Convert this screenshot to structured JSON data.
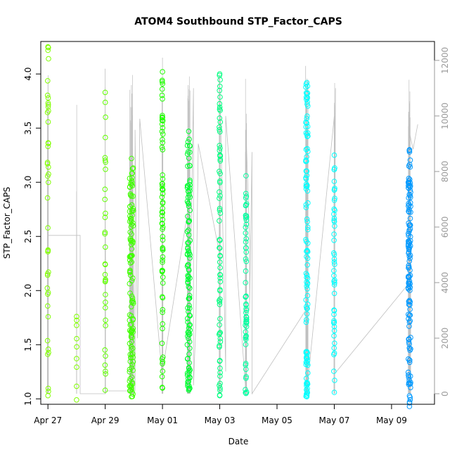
{
  "chart_data": {
    "type": "scatter",
    "title": "ATOM4 Southbound STP_Factor_CAPS",
    "xlabel": "Date",
    "ylabel": "STP_Factor_CAPS",
    "x_axis": {
      "type": "date",
      "range": [
        "2017-04-26T18:00",
        "2017-05-10T12:00"
      ],
      "ticks": [
        "Apr 27",
        "Apr 29",
        "May 01",
        "May 03",
        "May 05",
        "May 07",
        "May 09"
      ]
    },
    "y_axis": {
      "range": [
        0.95,
        4.3
      ],
      "ticks": [
        "1.0",
        "1.5",
        "2.0",
        "2.5",
        "3.0",
        "3.5",
        "4.0"
      ]
    },
    "y2_axis": {
      "range": [
        0,
        12200
      ],
      "ticks": [
        "0",
        "2000",
        "4000",
        "6000",
        "8000",
        "10000",
        "12000"
      ],
      "color": "#9a9a9a"
    },
    "grid": false,
    "legend": "none",
    "clusters": [
      {
        "day": "2017-04-27",
        "spread_h": 0.5,
        "ymin": 1.03,
        "ymax": 4.25,
        "color": "#80ff00",
        "count": 40
      },
      {
        "day": "2017-04-28",
        "spread_h": 0.1,
        "ymin": 0.99,
        "ymax": 1.76,
        "color": "#80ff00",
        "count": 7
      },
      {
        "day": "2017-04-29",
        "spread_h": 0.3,
        "ymin": 1.08,
        "ymax": 3.83,
        "color": "#60ff00",
        "count": 30
      },
      {
        "day": "2017-04-29T22:00",
        "spread_h": 1.6,
        "ymin": 1.02,
        "ymax": 3.22,
        "color": "#40ff00",
        "count": 120
      },
      {
        "day": "2017-05-01",
        "spread_h": 0.4,
        "ymin": 1.1,
        "ymax": 4.02,
        "color": "#20ff00",
        "count": 70
      },
      {
        "day": "2017-05-01T22:00",
        "spread_h": 1.2,
        "ymin": 1.08,
        "ymax": 3.47,
        "color": "#00ff30",
        "count": 110
      },
      {
        "day": "2017-05-03",
        "spread_h": 0.5,
        "ymin": 1.03,
        "ymax": 4.0,
        "color": "#00ff80",
        "count": 70
      },
      {
        "day": "2017-05-03T22:00",
        "spread_h": 0.5,
        "ymin": 1.05,
        "ymax": 3.06,
        "color": "#00ffa0",
        "count": 55
      },
      {
        "day": "2017-05-06T01:00",
        "spread_h": 0.9,
        "ymin": 1.02,
        "ymax": 3.92,
        "color": "#00ffff",
        "count": 110
      },
      {
        "day": "2017-05-07",
        "spread_h": 0.4,
        "ymin": 1.06,
        "ymax": 3.25,
        "color": "#00ffff",
        "count": 45
      },
      {
        "day": "2017-05-09T15:00",
        "spread_h": 1.0,
        "ymin": 0.93,
        "ymax": 3.3,
        "color": "#0099ff",
        "count": 130
      }
    ],
    "secondary_series": {
      "name": "",
      "color": "#c0c0c0",
      "points": [
        [
          "2017-04-27",
          0
        ],
        [
          "2017-04-27",
          1200
        ],
        [
          "2017-04-27",
          11200
        ],
        [
          "2017-04-27",
          4400
        ],
        [
          "2017-04-27",
          9700
        ],
        [
          "2017-04-27",
          0
        ],
        [
          "2017-04-27",
          5700
        ],
        [
          "2017-04-28T03:00",
          5700
        ],
        [
          "2017-04-28T03:00",
          0
        ],
        [
          "2017-04-29",
          0
        ],
        [
          "2017-04-29",
          1200
        ],
        [
          "2017-04-29",
          11700
        ],
        [
          "2017-04-29",
          100
        ],
        [
          "2017-04-29T22:00",
          100
        ],
        [
          "2017-04-29T22:00",
          8600
        ],
        [
          "2017-04-30T01:00",
          100
        ],
        [
          "2017-04-30T01:00",
          9500
        ],
        [
          "2017-04-30T03:00",
          2000
        ],
        [
          "2017-04-30T05:00",
          9900
        ],
        [
          "2017-05-01",
          500
        ],
        [
          "2017-05-01",
          12100
        ],
        [
          "2017-05-01",
          600
        ],
        [
          "2017-05-01",
          800
        ],
        [
          "2017-05-01T22:00",
          6800
        ],
        [
          "2017-05-01T22:00",
          200
        ],
        [
          "2017-05-02T02:00",
          11000
        ],
        [
          "2017-05-02T02:00",
          300
        ],
        [
          "2017-05-02T04:00",
          2500
        ],
        [
          "2017-05-02T06:00",
          9000
        ],
        [
          "2017-05-03",
          5000
        ],
        [
          "2017-05-03",
          11500
        ],
        [
          "2017-05-03T05:00",
          800
        ],
        [
          "2017-05-03T05:00",
          10000
        ],
        [
          "2017-05-03T22:00",
          0
        ],
        [
          "2017-05-03T22:00",
          9500
        ],
        [
          "2017-05-04T01:00",
          5500
        ],
        [
          "2017-05-04T01:00",
          3000
        ],
        [
          "2017-05-04T03:00",
          8700
        ],
        [
          "2017-05-04T03:00",
          0
        ],
        [
          "2017-05-06",
          3000
        ],
        [
          "2017-05-06",
          11800
        ],
        [
          "2017-05-06",
          9900
        ],
        [
          "2017-05-06T02:00",
          11300
        ],
        [
          "2017-05-06T02:00",
          500
        ],
        [
          "2017-05-07",
          10000
        ],
        [
          "2017-05-07",
          5200
        ],
        [
          "2017-05-07T01:00",
          11000
        ],
        [
          "2017-05-07",
          700
        ],
        [
          "2017-05-09T15:00",
          4000
        ],
        [
          "2017-05-09T15:00",
          9400
        ],
        [
          "2017-05-09T18:00",
          8800
        ],
        [
          "2017-05-09T22:00",
          9700
        ]
      ]
    }
  }
}
